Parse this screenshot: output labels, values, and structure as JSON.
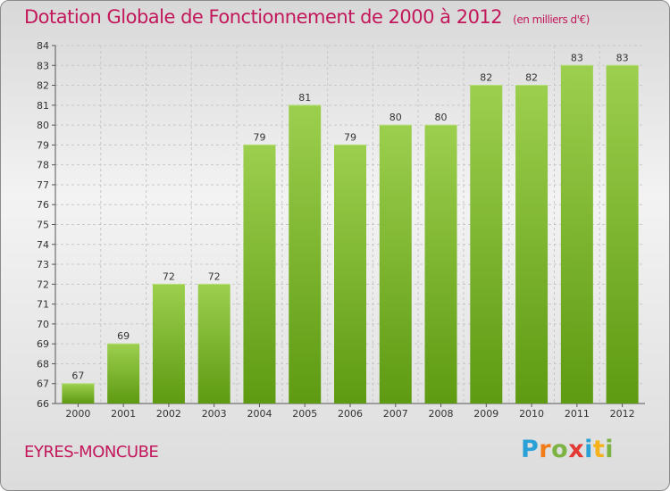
{
  "title": "Dotation Globale de Fonctionnement de 2000 à 2012",
  "unit": "(en milliers d'€)",
  "place": "EYRES-MONCUBE",
  "logo_text": "Proxiti",
  "colors": {
    "title": "#c2185b",
    "bar_top": "#9ccf4e",
    "bar_bottom": "#5e9a12",
    "grid": "#c8c8c8"
  },
  "chart_data": {
    "type": "bar",
    "categories": [
      "2000",
      "2001",
      "2002",
      "2003",
      "2004",
      "2005",
      "2006",
      "2007",
      "2008",
      "2009",
      "2010",
      "2011",
      "2012"
    ],
    "values": [
      67,
      69,
      72,
      72,
      79,
      81,
      79,
      80,
      80,
      82,
      82,
      83,
      83
    ],
    "ylim": [
      66,
      84
    ],
    "yticks": [
      66,
      67,
      68,
      69,
      70,
      71,
      72,
      73,
      74,
      75,
      76,
      77,
      78,
      79,
      80,
      81,
      82,
      83,
      84
    ],
    "grid": true,
    "xlabel": "",
    "ylabel": ""
  }
}
